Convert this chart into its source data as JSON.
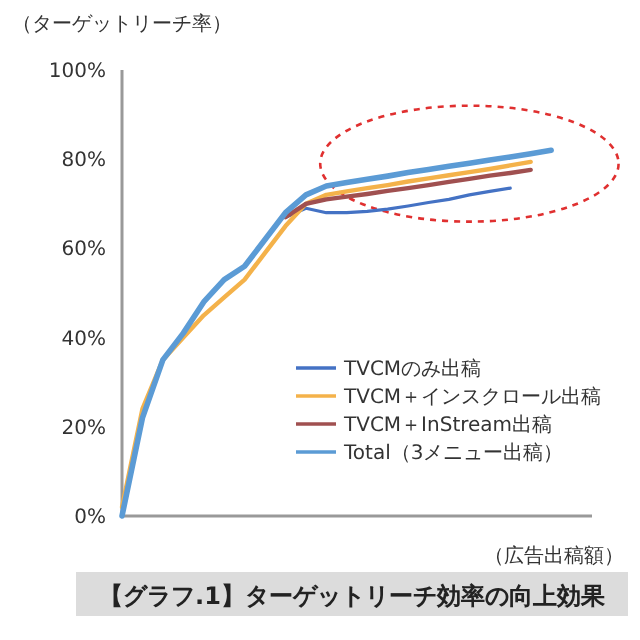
{
  "chart_data": {
    "type": "line",
    "title": "【グラフ.1】ターゲットリーチ効率の向上効果",
    "ylabel": "（ターゲットリーチ率）",
    "xlabel": "（広告出稿額）",
    "categories": [
      null,
      null,
      null,
      null,
      null,
      null,
      null,
      null,
      null,
      null,
      null,
      null,
      null,
      null,
      null,
      null,
      null,
      null,
      null,
      null,
      null,
      null,
      null,
      null
    ],
    "ylim": [
      0,
      100
    ],
    "yticks": [
      {
        "value": 0,
        "label": "0%"
      },
      {
        "value": 20,
        "label": "20%"
      },
      {
        "value": 40,
        "label": "40%"
      },
      {
        "value": 60,
        "label": "60%"
      },
      {
        "value": 80,
        "label": "80%"
      },
      {
        "value": 100,
        "label": "100%"
      }
    ],
    "grid": false,
    "legend": "bottom right",
    "marker": "none",
    "line_style": "solid",
    "series": [
      {
        "name": "TVCMのみ出稿",
        "color": "#4472c4",
        "values": [
          null,
          null,
          null,
          null,
          null,
          null,
          null,
          null,
          67,
          69,
          68,
          68,
          68.3,
          68.8,
          69.5,
          70.3,
          71,
          72,
          72.8,
          73.5,
          null,
          null,
          null,
          null
        ]
      },
      {
        "name": "TVCM＋インスクロール出稿",
        "color": "#f4b24a",
        "values": [
          2,
          24,
          35,
          40,
          45,
          49,
          53,
          59,
          65,
          70,
          72,
          72.8,
          73.5,
          74.2,
          75,
          75.7,
          76.4,
          77.1,
          77.8,
          78.6,
          79.4,
          null,
          null,
          null
        ]
      },
      {
        "name": "TVCM＋InStream出稿",
        "color": "#a05050",
        "values": [
          null,
          null,
          null,
          null,
          null,
          null,
          null,
          null,
          67,
          70,
          71,
          71.6,
          72.2,
          72.9,
          73.5,
          74.2,
          74.9,
          75.6,
          76.3,
          76.9,
          77.6,
          null,
          null,
          null
        ]
      },
      {
        "name": "Total（3メニュー出稿）",
        "color": "#5b9bd5",
        "values": [
          0,
          22,
          35,
          41,
          48,
          53,
          56,
          62,
          68,
          72,
          74,
          74.8,
          75.5,
          76.2,
          77,
          77.7,
          78.4,
          79.1,
          79.8,
          80.5,
          81.2,
          82,
          null,
          null
        ]
      }
    ]
  }
}
